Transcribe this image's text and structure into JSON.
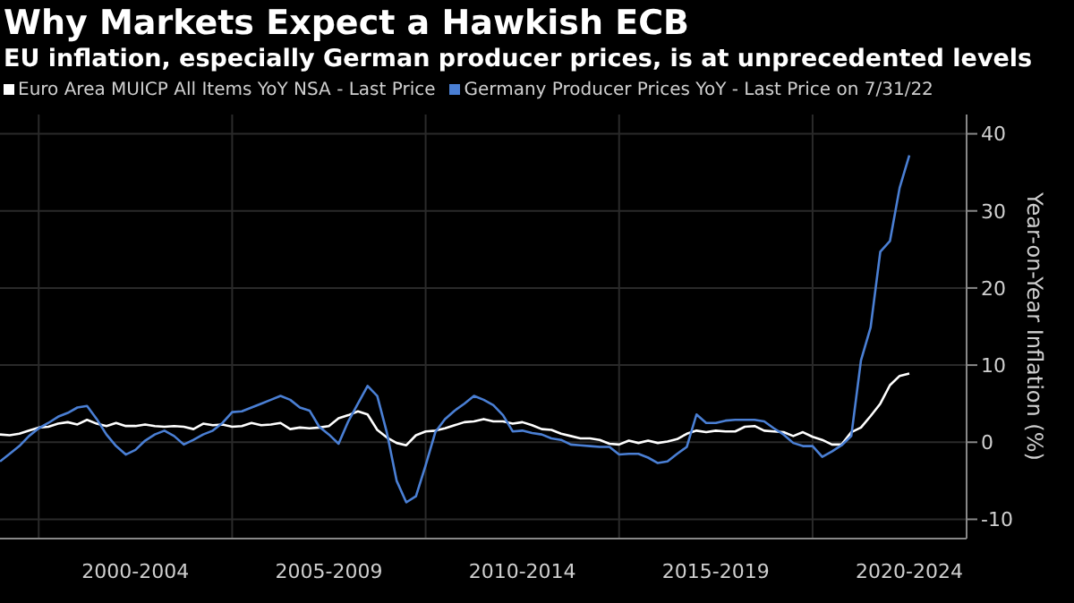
{
  "chart_data": {
    "type": "line",
    "title": "Why Markets Expect a Hawkish ECB",
    "subtitle": "EU inflation, especially German producer prices, is at unprecedented levels",
    "ylabel": "Year-on-Year Inflation (%)",
    "categories": [
      null,
      null,
      null,
      null,
      null,
      null,
      null,
      null,
      null,
      null,
      null,
      null,
      null,
      null,
      "2000-2004",
      null,
      null,
      null,
      null,
      null,
      null,
      null,
      null,
      null,
      null,
      null,
      null,
      null,
      null,
      null,
      null,
      null,
      null,
      null,
      "2005-2009",
      null,
      null,
      null,
      null,
      null,
      null,
      null,
      null,
      null,
      null,
      null,
      null,
      null,
      null,
      null,
      null,
      null,
      null,
      null,
      "2010-2014",
      null,
      null,
      null,
      null,
      null,
      null,
      null,
      null,
      null,
      null,
      null,
      null,
      null,
      null,
      null,
      null,
      null,
      null,
      null,
      "2015-2019",
      null,
      null,
      null,
      null,
      null,
      null,
      null,
      null,
      null,
      null,
      null,
      null,
      null,
      null,
      null,
      null,
      null,
      null,
      null,
      "2020-2024"
    ],
    "series": [
      {
        "name": "Euro Area MUICP All Items YoY NSA - Last Price",
        "color": "#ffffff",
        "values": [
          1.0,
          0.9,
          1.1,
          1.5,
          1.9,
          2.0,
          2.4,
          2.6,
          2.3,
          2.9,
          2.4,
          2.1,
          2.5,
          2.1,
          2.1,
          2.3,
          2.1,
          2.0,
          2.1,
          2.0,
          1.7,
          2.4,
          2.2,
          2.3,
          2.0,
          2.1,
          2.5,
          2.2,
          2.3,
          2.5,
          1.7,
          1.9,
          1.8,
          1.9,
          2.1,
          3.1,
          3.5,
          4.0,
          3.6,
          1.6,
          0.6,
          -0.1,
          -0.4,
          0.9,
          1.4,
          1.5,
          1.8,
          2.2,
          2.6,
          2.7,
          3.0,
          2.7,
          2.7,
          2.4,
          2.6,
          2.2,
          1.7,
          1.6,
          1.1,
          0.8,
          0.5,
          0.5,
          0.3,
          -0.2,
          -0.3,
          0.2,
          -0.1,
          0.2,
          -0.1,
          0.1,
          0.4,
          1.1,
          1.5,
          1.3,
          1.5,
          1.4,
          1.4,
          2.0,
          2.1,
          1.5,
          1.4,
          1.3,
          0.8,
          1.3,
          0.7,
          0.3,
          -0.3,
          -0.3,
          1.3,
          1.9,
          3.4,
          5.0,
          7.4,
          8.6,
          8.9
        ]
      },
      {
        "name": "Germany Producer Prices YoY - Last Price on 7/31/22",
        "color": "#4a7fd4",
        "values": [
          -2.5,
          -1.5,
          -0.5,
          0.8,
          1.8,
          2.5,
          3.3,
          3.8,
          4.5,
          4.7,
          3.0,
          1.0,
          -0.5,
          -1.6,
          -1.0,
          0.2,
          1.0,
          1.5,
          0.8,
          -0.3,
          0.3,
          1.0,
          1.5,
          2.5,
          3.9,
          4.0,
          4.5,
          5.0,
          5.5,
          6.0,
          5.5,
          4.5,
          4.1,
          2.0,
          1.0,
          -0.2,
          2.7,
          5.0,
          7.3,
          6.0,
          1.2,
          -5.0,
          -7.8,
          -7.0,
          -3.0,
          1.3,
          3.0,
          4.1,
          5.0,
          6.0,
          5.5,
          4.8,
          3.5,
          1.4,
          1.5,
          1.2,
          1.0,
          0.5,
          0.3,
          -0.3,
          -0.4,
          -0.5,
          -0.6,
          -0.6,
          -1.6,
          -1.5,
          -1.5,
          -2.0,
          -2.7,
          -2.5,
          -1.5,
          -0.6,
          3.6,
          2.5,
          2.5,
          2.8,
          2.9,
          2.9,
          2.9,
          2.7,
          1.8,
          1.0,
          -0.1,
          -0.5,
          -0.5,
          -1.9,
          -1.2,
          -0.4,
          0.8,
          10.6,
          14.9,
          24.7,
          26.1,
          33.0,
          37.2
        ]
      }
    ],
    "ylim": [
      -12.5,
      42.5
    ],
    "yticks": [
      -10,
      0,
      10,
      20,
      30,
      40
    ],
    "grid": true,
    "legend": "top left",
    "marker": "none",
    "line_style": "solid"
  }
}
